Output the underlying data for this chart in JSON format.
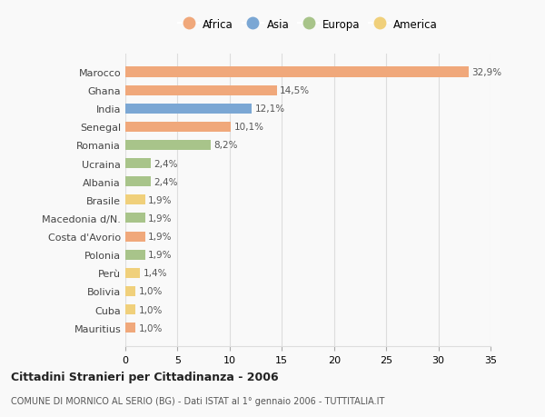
{
  "countries": [
    "Marocco",
    "Ghana",
    "India",
    "Senegal",
    "Romania",
    "Ucraina",
    "Albania",
    "Brasile",
    "Macedonia d/N.",
    "Costa d'Avorio",
    "Polonia",
    "Perù",
    "Bolivia",
    "Cuba",
    "Mauritius"
  ],
  "values": [
    32.9,
    14.5,
    12.1,
    10.1,
    8.2,
    2.4,
    2.4,
    1.9,
    1.9,
    1.9,
    1.9,
    1.4,
    1.0,
    1.0,
    1.0
  ],
  "labels": [
    "32,9%",
    "14,5%",
    "12,1%",
    "10,1%",
    "8,2%",
    "2,4%",
    "2,4%",
    "1,9%",
    "1,9%",
    "1,9%",
    "1,9%",
    "1,4%",
    "1,0%",
    "1,0%",
    "1,0%"
  ],
  "continents": [
    "Africa",
    "Africa",
    "Asia",
    "Africa",
    "Europa",
    "Europa",
    "Europa",
    "America",
    "Europa",
    "Africa",
    "Europa",
    "America",
    "America",
    "America",
    "Africa"
  ],
  "continent_colors": {
    "Africa": "#F0A87B",
    "Asia": "#7BA7D4",
    "Europa": "#A8C48A",
    "America": "#F0D07B"
  },
  "legend_order": [
    "Africa",
    "Asia",
    "Europa",
    "America"
  ],
  "title": "Cittadini Stranieri per Cittadinanza - 2006",
  "subtitle": "COMUNE DI MORNICO AL SERIO (BG) - Dati ISTAT al 1° gennaio 2006 - TUTTITALIA.IT",
  "xlim": [
    0,
    35
  ],
  "xticks": [
    0,
    5,
    10,
    15,
    20,
    25,
    30,
    35
  ],
  "background_color": "#f9f9f9",
  "grid_color": "#dddddd",
  "bar_height": 0.55,
  "label_fontsize": 7.5,
  "tick_fontsize": 8,
  "title_fontsize": 9,
  "subtitle_fontsize": 7
}
